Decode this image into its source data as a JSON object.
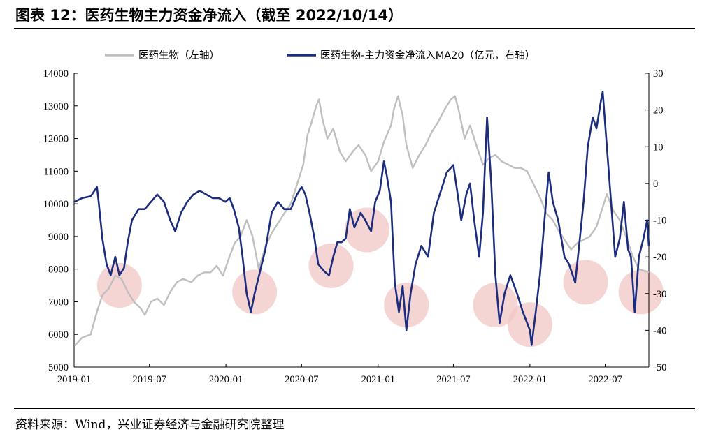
{
  "header": {
    "title": "图表 12：医药生物主力资金净流入（截至 2022/10/14）"
  },
  "footer": {
    "source": "资料来源：Wind，兴业证券经济与金融研究院整理"
  },
  "chart_data": {
    "type": "line",
    "title": "",
    "legend_position": "top",
    "x_axis": {
      "type": "date",
      "range": [
        "2019-01-01",
        "2022-10-14"
      ],
      "tick_labels": [
        "2019-01",
        "2019-07",
        "2020-01",
        "2020-07",
        "2021-01",
        "2021-07",
        "2022-01",
        "2022-07"
      ],
      "tick_dates": [
        "2019-01-01",
        "2019-07-01",
        "2020-01-01",
        "2020-07-01",
        "2021-01-01",
        "2021-07-01",
        "2022-01-01",
        "2022-07-01"
      ]
    },
    "y_left": {
      "range": [
        5000,
        14000
      ],
      "ticks": [
        5000,
        6000,
        7000,
        8000,
        9000,
        10000,
        11000,
        12000,
        13000,
        14000
      ],
      "tick_labels": [
        "5000",
        "6000",
        "7000",
        "8000",
        "9000",
        "10000",
        "11000",
        "12000",
        "13000",
        "14000"
      ]
    },
    "y_right": {
      "range": [
        -50,
        30
      ],
      "ticks": [
        -50,
        -40,
        -30,
        -20,
        -10,
        0,
        10,
        20,
        30
      ],
      "tick_labels": [
        "-50",
        "-40",
        "-30",
        "-20",
        "-10",
        "0",
        "10",
        "20",
        "30"
      ]
    },
    "grid": false,
    "series": [
      {
        "name": "医药生物（左轴）",
        "axis": "left",
        "color": "#bfbfbf",
        "points": [
          [
            "2019-01-02",
            5650
          ],
          [
            "2019-01-20",
            5900
          ],
          [
            "2019-02-10",
            6000
          ],
          [
            "2019-02-25",
            6700
          ],
          [
            "2019-03-10",
            7200
          ],
          [
            "2019-03-25",
            7400
          ],
          [
            "2019-04-10",
            7800
          ],
          [
            "2019-04-25",
            7700
          ],
          [
            "2019-05-10",
            7300
          ],
          [
            "2019-05-25",
            7000
          ],
          [
            "2019-06-10",
            6800
          ],
          [
            "2019-06-20",
            6600
          ],
          [
            "2019-07-05",
            7000
          ],
          [
            "2019-07-20",
            7100
          ],
          [
            "2019-08-05",
            6900
          ],
          [
            "2019-08-20",
            7300
          ],
          [
            "2019-09-05",
            7600
          ],
          [
            "2019-09-20",
            7700
          ],
          [
            "2019-10-10",
            7600
          ],
          [
            "2019-10-25",
            7800
          ],
          [
            "2019-11-10",
            7900
          ],
          [
            "2019-11-25",
            7900
          ],
          [
            "2019-12-10",
            8100
          ],
          [
            "2019-12-25",
            7800
          ],
          [
            "2020-01-10",
            8400
          ],
          [
            "2020-01-22",
            8800
          ],
          [
            "2020-02-05",
            9000
          ],
          [
            "2020-02-20",
            9500
          ],
          [
            "2020-03-05",
            9000
          ],
          [
            "2020-03-20",
            8000
          ],
          [
            "2020-04-05",
            8700
          ],
          [
            "2020-04-20",
            9100
          ],
          [
            "2020-05-05",
            9400
          ],
          [
            "2020-05-20",
            9700
          ],
          [
            "2020-06-05",
            10000
          ],
          [
            "2020-06-20",
            10600
          ],
          [
            "2020-07-05",
            11200
          ],
          [
            "2020-07-15",
            12100
          ],
          [
            "2020-07-25",
            12500
          ],
          [
            "2020-08-05",
            13000
          ],
          [
            "2020-08-12",
            13200
          ],
          [
            "2020-08-20",
            12600
          ],
          [
            "2020-09-01",
            12000
          ],
          [
            "2020-09-15",
            12300
          ],
          [
            "2020-10-01",
            11600
          ],
          [
            "2020-10-15",
            11300
          ],
          [
            "2020-11-01",
            11600
          ],
          [
            "2020-11-15",
            11800
          ],
          [
            "2020-12-01",
            11500
          ],
          [
            "2020-12-15",
            11000
          ],
          [
            "2021-01-01",
            11300
          ],
          [
            "2021-01-15",
            11900
          ],
          [
            "2021-02-01",
            12400
          ],
          [
            "2021-02-08",
            12900
          ],
          [
            "2021-02-18",
            13300
          ],
          [
            "2021-03-01",
            12700
          ],
          [
            "2021-03-10",
            11800
          ],
          [
            "2021-03-25",
            11100
          ],
          [
            "2021-04-10",
            11500
          ],
          [
            "2021-04-25",
            11800
          ],
          [
            "2021-05-10",
            12200
          ],
          [
            "2021-05-25",
            12500
          ],
          [
            "2021-06-10",
            12900
          ],
          [
            "2021-06-25",
            13200
          ],
          [
            "2021-07-05",
            13300
          ],
          [
            "2021-07-15",
            12800
          ],
          [
            "2021-07-28",
            12000
          ],
          [
            "2021-08-10",
            12400
          ],
          [
            "2021-08-25",
            11800
          ],
          [
            "2021-09-10",
            11200
          ],
          [
            "2021-09-25",
            11400
          ],
          [
            "2021-10-10",
            11500
          ],
          [
            "2021-10-25",
            11300
          ],
          [
            "2021-11-10",
            11200
          ],
          [
            "2021-11-25",
            11100
          ],
          [
            "2021-12-10",
            11100
          ],
          [
            "2021-12-25",
            11000
          ],
          [
            "2022-01-10",
            10600
          ],
          [
            "2022-01-25",
            10200
          ],
          [
            "2022-02-10",
            9700
          ],
          [
            "2022-02-25",
            9500
          ],
          [
            "2022-03-10",
            9200
          ],
          [
            "2022-03-25",
            8900
          ],
          [
            "2022-04-10",
            8600
          ],
          [
            "2022-04-25",
            8800
          ],
          [
            "2022-05-10",
            8900
          ],
          [
            "2022-05-25",
            9000
          ],
          [
            "2022-06-10",
            9300
          ],
          [
            "2022-06-25",
            9900
          ],
          [
            "2022-07-05",
            10300
          ],
          [
            "2022-07-20",
            9800
          ],
          [
            "2022-08-05",
            9500
          ],
          [
            "2022-08-20",
            9000
          ],
          [
            "2022-09-05",
            8400
          ],
          [
            "2022-09-20",
            8000
          ],
          [
            "2022-10-14",
            7900
          ]
        ]
      },
      {
        "name": "医药生物-主力资金净流入MA20（亿元，右轴）",
        "axis": "right",
        "color": "#1c2d7e",
        "points": [
          [
            "2019-01-02",
            -5
          ],
          [
            "2019-01-20",
            -4
          ],
          [
            "2019-02-10",
            -3.5
          ],
          [
            "2019-02-25",
            -1
          ],
          [
            "2019-03-01",
            -5
          ],
          [
            "2019-03-10",
            -15
          ],
          [
            "2019-03-20",
            -22
          ],
          [
            "2019-03-30",
            -25
          ],
          [
            "2019-04-10",
            -20
          ],
          [
            "2019-04-20",
            -25
          ],
          [
            "2019-05-01",
            -23
          ],
          [
            "2019-05-10",
            -16
          ],
          [
            "2019-05-20",
            -10
          ],
          [
            "2019-06-05",
            -7
          ],
          [
            "2019-06-20",
            -7
          ],
          [
            "2019-07-05",
            -5
          ],
          [
            "2019-07-20",
            -3
          ],
          [
            "2019-08-05",
            -5
          ],
          [
            "2019-08-20",
            -10
          ],
          [
            "2019-09-01",
            -13
          ],
          [
            "2019-09-15",
            -8
          ],
          [
            "2019-09-30",
            -5
          ],
          [
            "2019-10-15",
            -3
          ],
          [
            "2019-10-30",
            -2
          ],
          [
            "2019-11-15",
            -3
          ],
          [
            "2019-11-30",
            -4
          ],
          [
            "2019-12-15",
            -4
          ],
          [
            "2019-12-31",
            -5
          ],
          [
            "2020-01-10",
            -4
          ],
          [
            "2020-01-20",
            -7
          ],
          [
            "2020-02-01",
            -12
          ],
          [
            "2020-02-10",
            -20
          ],
          [
            "2020-02-20",
            -30
          ],
          [
            "2020-03-01",
            -35
          ],
          [
            "2020-03-10",
            -30
          ],
          [
            "2020-03-25",
            -23
          ],
          [
            "2020-04-05",
            -18
          ],
          [
            "2020-04-20",
            -8
          ],
          [
            "2020-05-05",
            -5
          ],
          [
            "2020-05-20",
            -7
          ],
          [
            "2020-06-05",
            -7
          ],
          [
            "2020-06-20",
            -3
          ],
          [
            "2020-07-01",
            -1
          ],
          [
            "2020-07-10",
            -3
          ],
          [
            "2020-07-20",
            -8
          ],
          [
            "2020-08-01",
            -15
          ],
          [
            "2020-08-10",
            -22
          ],
          [
            "2020-08-25",
            -24
          ],
          [
            "2020-09-05",
            -25
          ],
          [
            "2020-09-15",
            -20
          ],
          [
            "2020-09-25",
            -16
          ],
          [
            "2020-10-05",
            -16
          ],
          [
            "2020-10-15",
            -15
          ],
          [
            "2020-10-25",
            -7
          ],
          [
            "2020-11-05",
            -12
          ],
          [
            "2020-11-20",
            -8
          ],
          [
            "2020-12-01",
            -10
          ],
          [
            "2020-12-15",
            -13
          ],
          [
            "2020-12-25",
            -5
          ],
          [
            "2021-01-05",
            -2
          ],
          [
            "2021-01-15",
            6
          ],
          [
            "2021-01-22",
            2
          ],
          [
            "2021-02-01",
            -5
          ],
          [
            "2021-02-10",
            -27
          ],
          [
            "2021-02-20",
            -35
          ],
          [
            "2021-03-01",
            -28
          ],
          [
            "2021-03-10",
            -40
          ],
          [
            "2021-03-20",
            -30
          ],
          [
            "2021-04-01",
            -22
          ],
          [
            "2021-04-15",
            -17
          ],
          [
            "2021-05-01",
            -20
          ],
          [
            "2021-05-15",
            -8
          ],
          [
            "2021-06-01",
            -2
          ],
          [
            "2021-06-15",
            3
          ],
          [
            "2021-07-01",
            5
          ],
          [
            "2021-07-10",
            -2
          ],
          [
            "2021-07-20",
            -10
          ],
          [
            "2021-08-01",
            -3
          ],
          [
            "2021-08-10",
            0
          ],
          [
            "2021-08-20",
            -10
          ],
          [
            "2021-09-01",
            -20
          ],
          [
            "2021-09-10",
            -8
          ],
          [
            "2021-09-20",
            18
          ],
          [
            "2021-09-30",
            0
          ],
          [
            "2021-10-10",
            -25
          ],
          [
            "2021-10-20",
            -38
          ],
          [
            "2021-11-01",
            -30
          ],
          [
            "2021-11-15",
            -25
          ],
          [
            "2021-12-01",
            -30
          ],
          [
            "2021-12-15",
            -35
          ],
          [
            "2022-01-01",
            -40
          ],
          [
            "2022-01-05",
            -44
          ],
          [
            "2022-01-15",
            -35
          ],
          [
            "2022-01-25",
            -25
          ],
          [
            "2022-02-05",
            -10
          ],
          [
            "2022-02-15",
            3
          ],
          [
            "2022-02-25",
            -5
          ],
          [
            "2022-03-10",
            -10
          ],
          [
            "2022-03-25",
            -20
          ],
          [
            "2022-04-05",
            -22
          ],
          [
            "2022-04-20",
            -27
          ],
          [
            "2022-05-01",
            -15
          ],
          [
            "2022-05-10",
            -5
          ],
          [
            "2022-05-20",
            10
          ],
          [
            "2022-06-01",
            18
          ],
          [
            "2022-06-10",
            15
          ],
          [
            "2022-06-20",
            22
          ],
          [
            "2022-06-25",
            25
          ],
          [
            "2022-07-05",
            10
          ],
          [
            "2022-07-15",
            -5
          ],
          [
            "2022-07-25",
            -20
          ],
          [
            "2022-08-05",
            -15
          ],
          [
            "2022-08-15",
            -5
          ],
          [
            "2022-08-25",
            -18
          ],
          [
            "2022-09-01",
            -20
          ],
          [
            "2022-09-10",
            -35
          ],
          [
            "2022-09-20",
            -20
          ],
          [
            "2022-10-01",
            -15
          ],
          [
            "2022-10-10",
            -10
          ],
          [
            "2022-10-14",
            -17
          ]
        ]
      }
    ],
    "highlights": [
      {
        "date": "2019-04-20",
        "value_left": 7500
      },
      {
        "date": "2020-03-10",
        "value_left": 7300
      },
      {
        "date": "2020-09-10",
        "value_left": 8100
      },
      {
        "date": "2020-12-05",
        "value_left": 9200
      },
      {
        "date": "2021-03-10",
        "value_left": 6900
      },
      {
        "date": "2021-10-10",
        "value_left": 6900
      },
      {
        "date": "2022-01-01",
        "value_left": 6300
      },
      {
        "date": "2022-05-15",
        "value_left": 7600
      },
      {
        "date": "2022-09-25",
        "value_left": 7300
      }
    ]
  }
}
